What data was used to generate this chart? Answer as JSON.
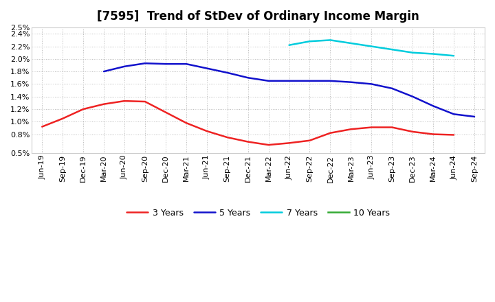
{
  "title": "[7595]  Trend of StDev of Ordinary Income Margin",
  "x_labels": [
    "Jun-19",
    "Sep-19",
    "Dec-19",
    "Mar-20",
    "Jun-20",
    "Sep-20",
    "Dec-20",
    "Mar-21",
    "Jun-21",
    "Sep-21",
    "Dec-21",
    "Mar-22",
    "Jun-22",
    "Sep-22",
    "Dec-22",
    "Mar-23",
    "Jun-23",
    "Sep-23",
    "Dec-23",
    "Mar-24",
    "Jun-24",
    "Sep-24"
  ],
  "ylim": [
    0.005,
    0.025
  ],
  "yticks": [
    0.005,
    0.006,
    0.008,
    0.01,
    0.012,
    0.014,
    0.016,
    0.018,
    0.02,
    0.022,
    0.024,
    0.025
  ],
  "ytick_labels_map": {
    "0.005": "0.5%",
    "0.008": "0.8%",
    "0.010": "1.0%",
    "0.012": "1.2%",
    "0.014": "1.4%",
    "0.016": "1.6%",
    "0.018": "1.8%",
    "0.020": "2.0%",
    "0.022": "2.2%",
    "0.024": "2.4%",
    "0.025": "2.5%"
  },
  "series": {
    "3 Years": {
      "color": "#ee2222",
      "linewidth": 1.8,
      "values": [
        0.0092,
        0.0105,
        0.012,
        0.0128,
        0.0133,
        0.0132,
        0.0115,
        0.0098,
        0.0085,
        0.0075,
        0.0068,
        0.0063,
        0.0066,
        0.007,
        0.0082,
        0.0088,
        0.0091,
        0.0091,
        0.0084,
        0.008,
        0.0079,
        null
      ]
    },
    "5 Years": {
      "color": "#1111cc",
      "linewidth": 1.8,
      "values": [
        null,
        null,
        null,
        0.018,
        0.0188,
        0.0193,
        0.0192,
        0.0192,
        0.0185,
        0.0178,
        0.017,
        0.0165,
        0.0165,
        0.0165,
        0.0165,
        0.0163,
        0.016,
        0.0153,
        0.014,
        0.0125,
        0.0112,
        0.0108
      ]
    },
    "7 Years": {
      "color": "#00ccdd",
      "linewidth": 1.8,
      "values": [
        null,
        null,
        null,
        null,
        null,
        null,
        null,
        null,
        null,
        null,
        null,
        null,
        0.0222,
        0.0228,
        0.023,
        0.0225,
        0.022,
        0.0215,
        0.021,
        0.0208,
        0.0205,
        null
      ]
    },
    "10 Years": {
      "color": "#33aa33",
      "linewidth": 1.8,
      "values": [
        null,
        null,
        null,
        null,
        null,
        null,
        null,
        null,
        null,
        null,
        null,
        null,
        null,
        null,
        null,
        null,
        null,
        null,
        null,
        null,
        null,
        null
      ]
    }
  },
  "legend_order": [
    "3 Years",
    "5 Years",
    "7 Years",
    "10 Years"
  ],
  "background_color": "#ffffff",
  "grid_color": "#bbbbbb",
  "title_fontsize": 12,
  "tick_fontsize": 8
}
